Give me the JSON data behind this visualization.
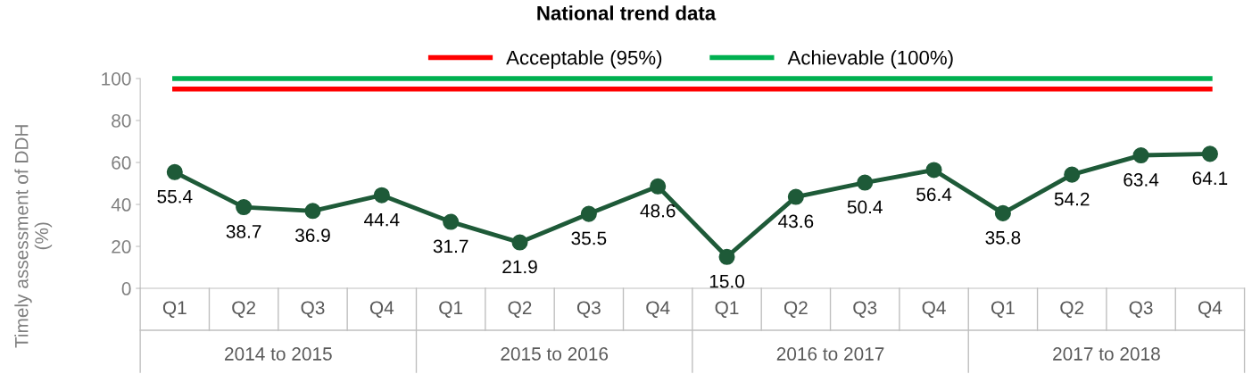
{
  "chart_data": {
    "type": "line",
    "title": "National trend data",
    "ylabel": "Timely assessment of DDH\n(%)",
    "categories": [
      "Q1",
      "Q2",
      "Q3",
      "Q4",
      "Q1",
      "Q2",
      "Q3",
      "Q4",
      "Q1",
      "Q2",
      "Q3",
      "Q4",
      "Q1",
      "Q2",
      "Q3",
      "Q4"
    ],
    "annotations": [
      "2014 to 2015",
      "2015 to 2016",
      "2016 to 2017",
      "2017 to 2018"
    ],
    "series": [
      {
        "name": "Acceptable (95%)",
        "color": "#ff0000",
        "marker": "none",
        "values": [
          95,
          95,
          95,
          95,
          95,
          95,
          95,
          95,
          95,
          95,
          95,
          95,
          95,
          95,
          95,
          95
        ]
      },
      {
        "name": "Achievable (100%)",
        "color": "#00b050",
        "marker": "none",
        "values": [
          100,
          100,
          100,
          100,
          100,
          100,
          100,
          100,
          100,
          100,
          100,
          100,
          100,
          100,
          100,
          100
        ]
      },
      {
        "color": "#1e5a38",
        "marker": "circle",
        "values": [
          55.4,
          38.7,
          36.9,
          44.4,
          31.7,
          21.9,
          35.5,
          48.6,
          15.0,
          43.6,
          50.4,
          56.4,
          35.8,
          54.2,
          63.4,
          64.1
        ],
        "value_labels": [
          "55.4",
          "38.7",
          "36.9",
          "44.4",
          "31.7",
          "21.9",
          "35.5",
          "48.6",
          "15.0",
          "43.6",
          "50.4",
          "56.4",
          "35.8",
          "54.2",
          "63.4",
          "64.1"
        ]
      }
    ],
    "ylim": [
      0,
      100
    ],
    "yticks": [
      0,
      20,
      40,
      60,
      80,
      100
    ],
    "grid": false,
    "legend": "top"
  }
}
